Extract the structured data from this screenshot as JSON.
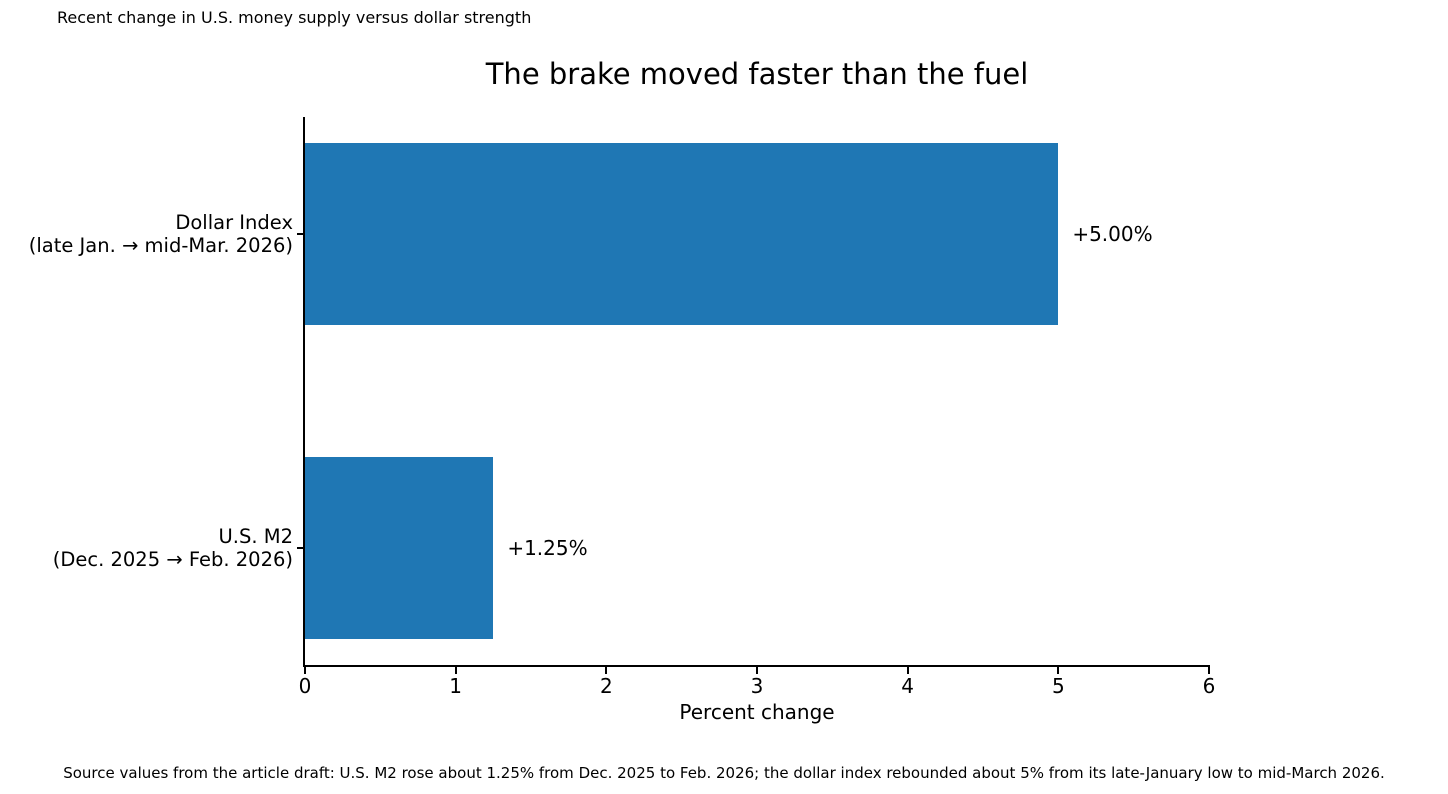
{
  "annotation": "Recent change in U.S. money supply versus dollar strength",
  "source_note": "Source values from the article draft: U.S. M2 rose about 1.25% from Dec. 2025 to Feb. 2026; the dollar index rebounded about 5% from its late-January low to mid-March 2026.",
  "chart_data": {
    "type": "bar",
    "orientation": "horizontal",
    "title": "The brake moved faster than the fuel",
    "xlabel": "Percent change",
    "categories": [
      "Dollar Index\n(late Jan. → mid-Mar. 2026)",
      "U.S. M2\n(Dec. 2025 → Feb. 2026)"
    ],
    "values": [
      5.0,
      1.25
    ],
    "value_labels": [
      "+5.00%",
      "+1.25%"
    ],
    "xlim": [
      0,
      6
    ],
    "xticks": [
      "0",
      "1",
      "2",
      "3",
      "4",
      "5",
      "6"
    ],
    "bar_color": "#1f77b4",
    "grid": false,
    "legend": "none"
  }
}
